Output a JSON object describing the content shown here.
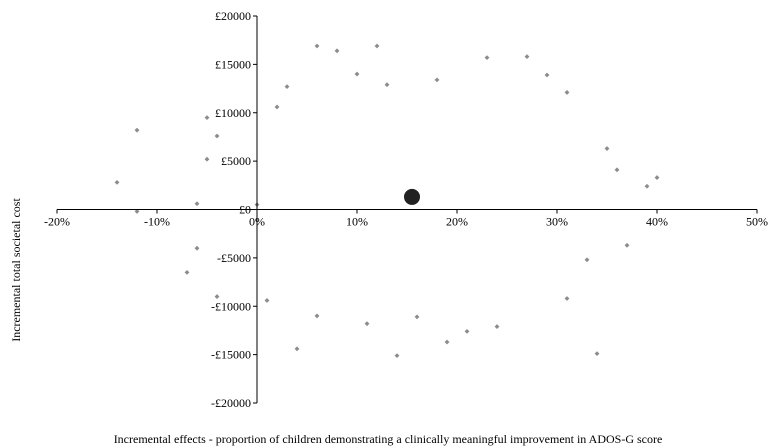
{
  "chart_data": {
    "type": "scatter",
    "title": "",
    "xlabel": "Incremental effects - proportion of children demonstrating a clinically meaningful improvement in ADOS-G score",
    "ylabel": "Incremental total societal cost",
    "xlim": [
      -0.2,
      0.5
    ],
    "ylim": [
      -20000,
      20000
    ],
    "x_ticks": [
      "-20%",
      "-10%",
      "0%",
      "10%",
      "20%",
      "30%",
      "40%",
      "50%"
    ],
    "y_ticks": [
      "£20000",
      "£15000",
      "£10000",
      "£5000",
      "£0",
      "-£5000",
      "-£10000",
      "-£15000",
      "-£20000"
    ],
    "grid": false,
    "legend": "none",
    "colors": {
      "points": "#8c8c8c",
      "point_estimate": "#222222",
      "axis": "#000000"
    },
    "series": [
      {
        "values": [
          [
            -0.14,
            2800
          ],
          [
            -0.12,
            8200
          ],
          [
            -0.12,
            -200
          ],
          [
            -0.07,
            -6500
          ],
          [
            -0.06,
            -4000
          ],
          [
            -0.06,
            600
          ],
          [
            -0.05,
            5200
          ],
          [
            -0.05,
            9500
          ],
          [
            -0.04,
            7600
          ],
          [
            -0.04,
            -9000
          ],
          [
            0.0,
            500
          ],
          [
            0.01,
            -9400
          ],
          [
            0.02,
            10600
          ],
          [
            0.03,
            12700
          ],
          [
            0.04,
            -14400
          ],
          [
            0.06,
            -11000
          ],
          [
            0.06,
            16900
          ],
          [
            0.08,
            16400
          ],
          [
            0.1,
            14000
          ],
          [
            0.11,
            -11800
          ],
          [
            0.12,
            16900
          ],
          [
            0.13,
            12900
          ],
          [
            0.14,
            -15100
          ],
          [
            0.16,
            -11100
          ],
          [
            0.18,
            13400
          ],
          [
            0.19,
            -13700
          ],
          [
            0.21,
            -12600
          ],
          [
            0.23,
            15700
          ],
          [
            0.24,
            -12100
          ],
          [
            0.27,
            15800
          ],
          [
            0.29,
            13900
          ],
          [
            0.31,
            12100
          ],
          [
            0.31,
            -9200
          ],
          [
            0.33,
            -5200
          ],
          [
            0.34,
            -14900
          ],
          [
            0.35,
            6300
          ],
          [
            0.36,
            4100
          ],
          [
            0.37,
            -3700
          ],
          [
            0.4,
            3300
          ],
          [
            0.39,
            2400
          ]
        ]
      }
    ],
    "point_estimate": {
      "x": 0.155,
      "y": 1300
    }
  }
}
